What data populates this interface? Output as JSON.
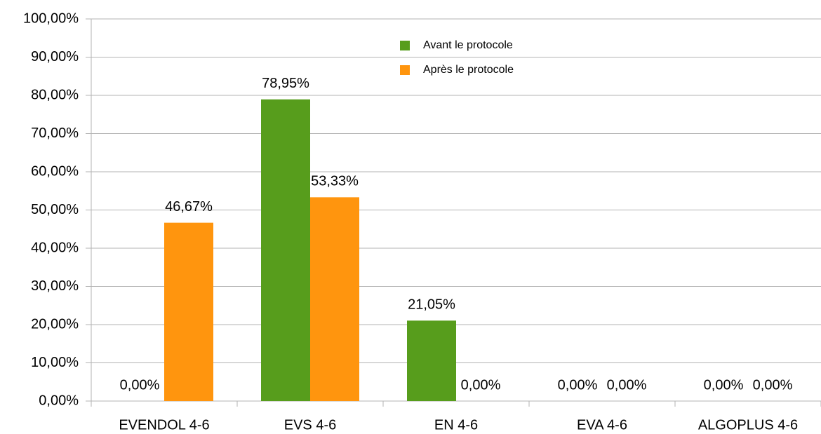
{
  "chart_data": {
    "type": "bar",
    "categories": [
      "EVENDOL 4-6",
      "EVS 4-6",
      "EN 4-6",
      "EVA 4-6",
      "ALGOPLUS 4-6"
    ],
    "series": [
      {
        "name": "Avant le protocole",
        "color": "#579d1c",
        "values": [
          0,
          78.95,
          21.05,
          0,
          0
        ],
        "value_labels": [
          "0,00%",
          "78,95%",
          "21,05%",
          "0,00%",
          "0,00%"
        ]
      },
      {
        "name": "Après le protocole",
        "color": "#ff950e",
        "values": [
          46.67,
          53.33,
          0,
          0,
          0
        ],
        "value_labels": [
          "46,67%",
          "53,33%",
          "0,00%",
          "0,00%",
          "0,00%"
        ]
      }
    ],
    "ylim": [
      0,
      100
    ],
    "yticks": [
      {
        "value": 0,
        "label": "0,00%"
      },
      {
        "value": 10,
        "label": "10,00%"
      },
      {
        "value": 20,
        "label": "20,00%"
      },
      {
        "value": 30,
        "label": "30,00%"
      },
      {
        "value": 40,
        "label": "40,00%"
      },
      {
        "value": 50,
        "label": "50,00%"
      },
      {
        "value": 60,
        "label": "60,00%"
      },
      {
        "value": 70,
        "label": "70,00%"
      },
      {
        "value": 80,
        "label": "80,00%"
      },
      {
        "value": 90,
        "label": "90,00%"
      },
      {
        "value": 100,
        "label": "100,00%"
      }
    ],
    "grid": true,
    "legend": "top"
  }
}
